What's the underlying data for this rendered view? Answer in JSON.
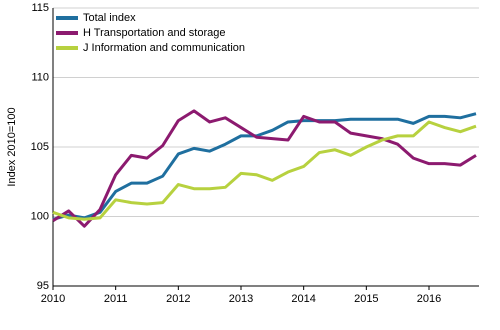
{
  "chart_data": {
    "type": "line",
    "y_label": "Index 2010=100",
    "x": [
      2010,
      2010.25,
      2010.5,
      2010.75,
      2011,
      2011.25,
      2011.5,
      2011.75,
      2012,
      2012.25,
      2012.5,
      2012.75,
      2013,
      2013.25,
      2013.5,
      2013.75,
      2014,
      2014.25,
      2014.5,
      2014.75,
      2015,
      2015.25,
      2015.5,
      2015.75,
      2016,
      2016.25,
      2016.5,
      2016.75
    ],
    "series": [
      {
        "name": "Total index",
        "color": "#1f6f9f",
        "values": [
          99.8,
          100.1,
          99.9,
          100.3,
          101.8,
          102.4,
          102.4,
          102.9,
          104.5,
          104.9,
          104.7,
          105.2,
          105.8,
          105.8,
          106.2,
          106.8,
          106.9,
          106.9,
          106.9,
          107.0,
          107.0,
          107.0,
          107.0,
          106.7,
          107.2,
          107.2,
          107.1,
          107.4
        ]
      },
      {
        "name": "H Transportation and storage",
        "color": "#8c1a6f",
        "values": [
          99.7,
          100.4,
          99.3,
          100.5,
          103.0,
          104.4,
          104.2,
          105.1,
          106.9,
          107.6,
          106.8,
          107.1,
          106.4,
          105.7,
          105.6,
          105.5,
          107.2,
          106.8,
          106.8,
          106.0,
          105.8,
          105.6,
          105.2,
          104.2,
          103.8,
          103.8,
          103.7,
          104.4
        ]
      },
      {
        "name": "J Information and communication",
        "color": "#b7d13f",
        "values": [
          100.3,
          99.9,
          99.8,
          99.9,
          101.2,
          101.0,
          100.9,
          101.0,
          102.3,
          102.0,
          102.0,
          102.1,
          103.1,
          103.0,
          102.6,
          103.2,
          103.6,
          104.6,
          104.8,
          104.4,
          105.0,
          105.5,
          105.8,
          105.8,
          106.8,
          106.4,
          106.1,
          106.5
        ]
      }
    ],
    "xlim": [
      2010,
      2016.75
    ],
    "xticks": [
      2010,
      2011,
      2012,
      2013,
      2014,
      2015,
      2016
    ],
    "ylim": [
      95,
      115
    ],
    "yticks": [
      95,
      100,
      105,
      110,
      115
    ],
    "grid": true,
    "legend": "upper left"
  }
}
